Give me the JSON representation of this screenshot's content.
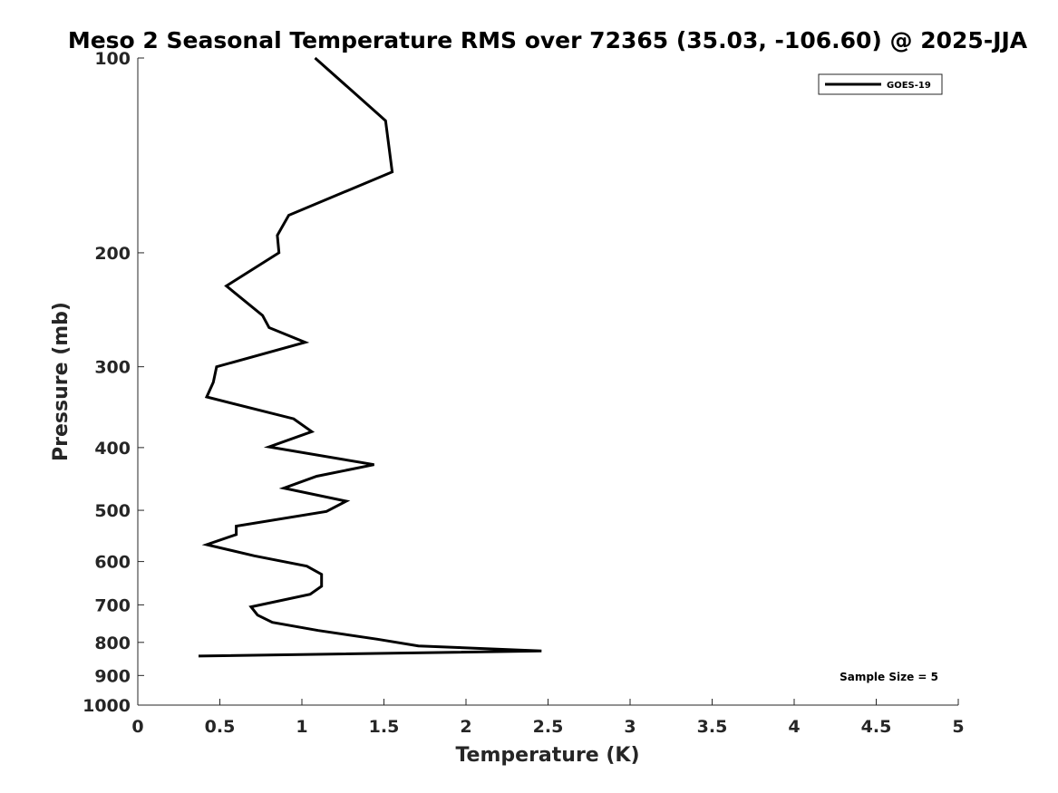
{
  "chart_data": {
    "type": "line",
    "title": "Meso 2 Seasonal Temperature RMS over 72365 (35.03, -106.60) @ 2025-JJA",
    "xlabel": "Temperature (K)",
    "ylabel": "Pressure (mb)",
    "xlim": [
      0,
      5
    ],
    "ylim": [
      100,
      1000
    ],
    "y_scale": "log",
    "y_reversed": true,
    "x_ticks": [
      0,
      0.5,
      1,
      1.5,
      2,
      2.5,
      3,
      3.5,
      4,
      4.5,
      5
    ],
    "x_tick_labels": [
      "0",
      "0.5",
      "1",
      "1.5",
      "2",
      "2.5",
      "3",
      "3.5",
      "4",
      "4.5",
      "5"
    ],
    "y_ticks": [
      100,
      200,
      300,
      400,
      500,
      600,
      700,
      800,
      900,
      1000
    ],
    "y_tick_labels": [
      "100",
      "200",
      "300",
      "400",
      "500",
      "600",
      "700",
      "800",
      "900",
      "1000"
    ],
    "grid": false,
    "legend": {
      "position": "top-right"
    },
    "annotations": [
      "Sample Size = 5"
    ],
    "series": [
      {
        "name": "GOES-19",
        "color": "#000000",
        "points": [
          {
            "x": 1.08,
            "p": 100
          },
          {
            "x": 1.51,
            "p": 125
          },
          {
            "x": 1.55,
            "p": 150
          },
          {
            "x": 0.92,
            "p": 175
          },
          {
            "x": 0.85,
            "p": 188
          },
          {
            "x": 0.86,
            "p": 200
          },
          {
            "x": 0.54,
            "p": 225
          },
          {
            "x": 0.76,
            "p": 250
          },
          {
            "x": 0.8,
            "p": 261
          },
          {
            "x": 1.02,
            "p": 275
          },
          {
            "x": 0.48,
            "p": 300
          },
          {
            "x": 0.46,
            "p": 317
          },
          {
            "x": 0.42,
            "p": 334
          },
          {
            "x": 0.95,
            "p": 361
          },
          {
            "x": 1.06,
            "p": 378
          },
          {
            "x": 0.8,
            "p": 399
          },
          {
            "x": 1.44,
            "p": 425
          },
          {
            "x": 1.09,
            "p": 443
          },
          {
            "x": 0.89,
            "p": 462
          },
          {
            "x": 1.27,
            "p": 484
          },
          {
            "x": 1.15,
            "p": 502
          },
          {
            "x": 0.6,
            "p": 529
          },
          {
            "x": 0.6,
            "p": 545
          },
          {
            "x": 0.42,
            "p": 565
          },
          {
            "x": 0.71,
            "p": 588
          },
          {
            "x": 1.03,
            "p": 610
          },
          {
            "x": 1.12,
            "p": 628
          },
          {
            "x": 1.12,
            "p": 655
          },
          {
            "x": 1.05,
            "p": 674
          },
          {
            "x": 0.69,
            "p": 705
          },
          {
            "x": 0.73,
            "p": 726
          },
          {
            "x": 0.82,
            "p": 745
          },
          {
            "x": 1.1,
            "p": 767
          },
          {
            "x": 1.46,
            "p": 791
          },
          {
            "x": 1.71,
            "p": 810
          },
          {
            "x": 2.46,
            "p": 825
          },
          {
            "x": 0.37,
            "p": 840
          }
        ]
      }
    ]
  }
}
